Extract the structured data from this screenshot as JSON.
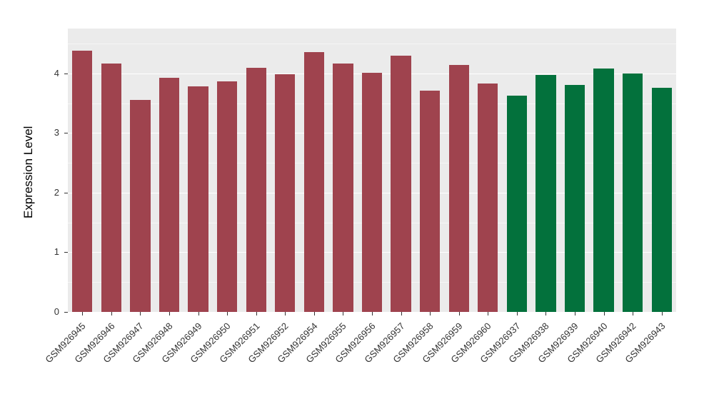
{
  "chart_data": {
    "type": "bar",
    "title": "",
    "xlabel": "",
    "ylabel": "Expression Level",
    "ylim": [
      0,
      4.75
    ],
    "yticks": [
      0,
      1,
      2,
      3,
      4
    ],
    "grid": true,
    "legend": "none",
    "panel_background": "#EBEBEB",
    "categories": [
      "GSM926945",
      "GSM926946",
      "GSM926947",
      "GSM926948",
      "GSM926949",
      "GSM926950",
      "GSM926951",
      "GSM926952",
      "GSM926954",
      "GSM926955",
      "GSM926956",
      "GSM926957",
      "GSM926958",
      "GSM926959",
      "GSM926960",
      "GSM926937",
      "GSM926938",
      "GSM926939",
      "GSM926940",
      "GSM926942",
      "GSM926943"
    ],
    "values": [
      4.38,
      4.17,
      3.55,
      3.92,
      3.78,
      3.87,
      4.09,
      3.98,
      4.36,
      4.17,
      4.01,
      4.3,
      3.71,
      4.14,
      3.83,
      3.63,
      3.97,
      3.81,
      4.08,
      4.0,
      3.76
    ],
    "bar_colors": [
      "#9F434E",
      "#9F434E",
      "#9F434E",
      "#9F434E",
      "#9F434E",
      "#9F434E",
      "#9F434E",
      "#9F434E",
      "#9F434E",
      "#9F434E",
      "#9F434E",
      "#9F434E",
      "#9F434E",
      "#9F434E",
      "#9F434E",
      "#03713C",
      "#03713C",
      "#03713C",
      "#03713C",
      "#03713C",
      "#03713C"
    ],
    "group_colors": {
      "left_group": "#9F434E",
      "right_group": "#03713C"
    }
  }
}
